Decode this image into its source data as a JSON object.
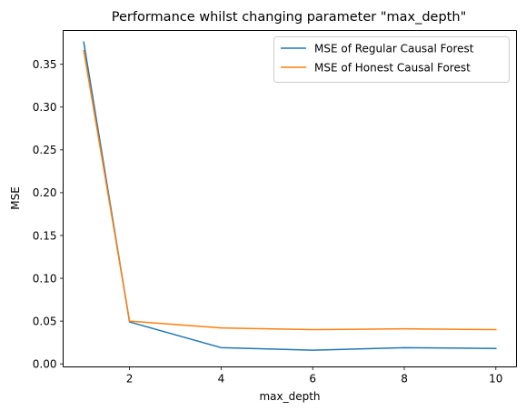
{
  "chart_data": {
    "type": "line",
    "title": "Performance whilst changing parameter \"max_depth\"",
    "xlabel": "max_depth",
    "ylabel": "MSE",
    "x": [
      1,
      2,
      4,
      6,
      8,
      10
    ],
    "xlim": [
      0.55,
      10.45
    ],
    "ylim": [
      -0.0035,
      0.3895
    ],
    "xticks": [
      2,
      4,
      6,
      8,
      10
    ],
    "xtick_labels": [
      "2",
      "4",
      "6",
      "8",
      "10"
    ],
    "yticks": [
      0.0,
      0.05,
      0.1,
      0.15,
      0.2,
      0.25,
      0.3,
      0.35
    ],
    "ytick_labels": [
      "0.00",
      "0.05",
      "0.10",
      "0.15",
      "0.20",
      "0.25",
      "0.30",
      "0.35"
    ],
    "grid": false,
    "legend_position": "top-right",
    "series": [
      {
        "name": "MSE of Regular Causal Forest",
        "color": "#1f77b4",
        "values": [
          0.376,
          0.049,
          0.019,
          0.016,
          0.019,
          0.018
        ]
      },
      {
        "name": "MSE of Honest Causal Forest",
        "color": "#ff7f0e",
        "values": [
          0.366,
          0.05,
          0.042,
          0.04,
          0.041,
          0.04
        ]
      }
    ]
  }
}
